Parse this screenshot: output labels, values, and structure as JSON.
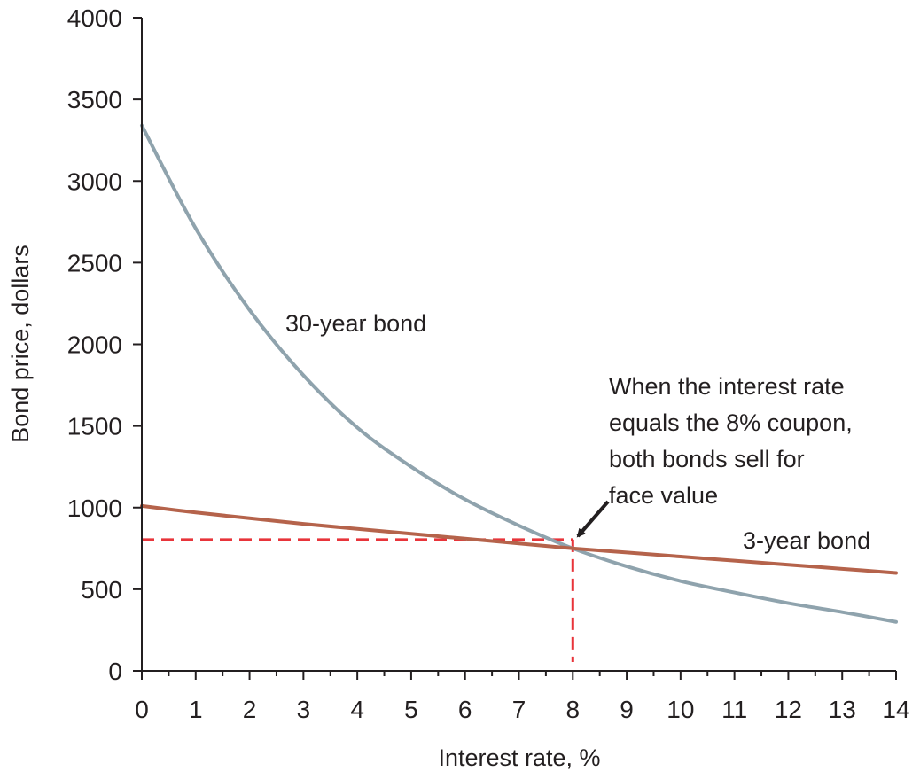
{
  "chart_data": {
    "type": "line",
    "xlabel": "Interest rate, %",
    "ylabel": "Bond price, dollars",
    "xlim": [
      0,
      14
    ],
    "ylim": [
      0,
      4000
    ],
    "x_ticks": [
      0,
      1,
      2,
      3,
      4,
      5,
      6,
      7,
      8,
      9,
      10,
      11,
      12,
      13,
      14
    ],
    "y_ticks": [
      0,
      500,
      1000,
      1500,
      2000,
      2500,
      3000,
      3500,
      4000
    ],
    "grid": false,
    "series": [
      {
        "name": "30-year bond",
        "color": "#8fa3ad",
        "x": [
          0,
          1,
          2,
          3,
          4,
          5,
          6,
          7,
          8,
          9,
          10,
          11,
          12,
          13,
          14
        ],
        "y": [
          3340,
          2710,
          2210,
          1810,
          1490,
          1250,
          1050,
          890,
          750,
          640,
          550,
          480,
          415,
          360,
          300
        ]
      },
      {
        "name": "3-year bond",
        "color": "#b5634b",
        "x": [
          0,
          1,
          2,
          3,
          4,
          5,
          6,
          7,
          8,
          9,
          10,
          11,
          12,
          13,
          14
        ],
        "y": [
          1010,
          970,
          935,
          900,
          870,
          840,
          810,
          780,
          750,
          725,
          700,
          675,
          650,
          625,
          600
        ]
      }
    ],
    "reference_lines": {
      "color": "#e8343a",
      "point": {
        "x": 8,
        "y": 750
      }
    },
    "annotation": {
      "lines": [
        "When the interest rate",
        "equals the 8% coupon,",
        "both bonds sell for",
        "face value"
      ],
      "arrow_target": {
        "x": 8,
        "y": 750
      }
    }
  }
}
